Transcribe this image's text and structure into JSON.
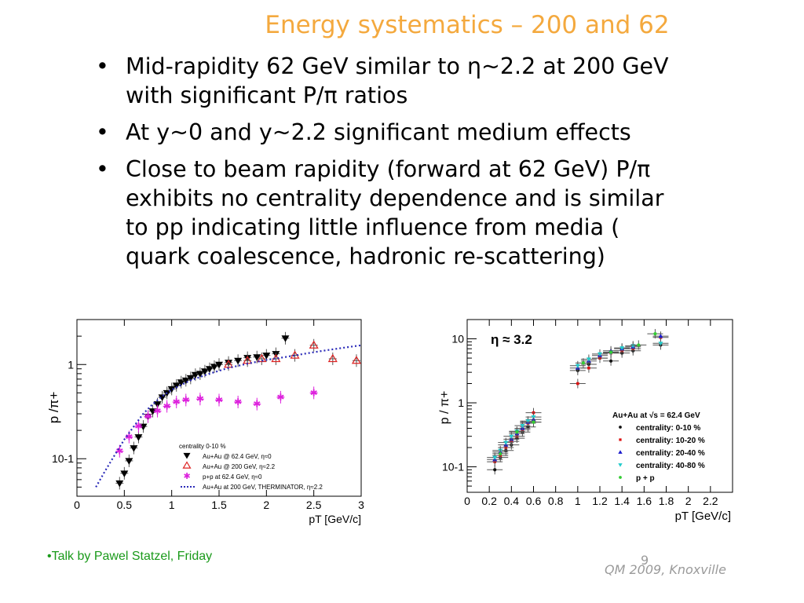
{
  "slide": {
    "title": "Energy systematics – 200 and 62",
    "bullets": [
      {
        "lines": [
          "Mid-rapidity 62 GeV similar to η~2.2 at 200 GeV",
          "with significant P/π ratios"
        ]
      },
      {
        "lines": [
          "At y~0 and y~2.2 significant medium effects"
        ]
      },
      {
        "lines": [
          "Close to beam rapidity (forward at 62 GeV)  P/π",
          "exhibits no centrality dependence and is similar",
          "to pp indicating little influence from media (",
          "quark coalescence, hadronic re-scattering)"
        ]
      }
    ],
    "bullet_symbol": "•",
    "footnote": "•Talk by Pawel Statzel, Friday",
    "conference": "QM 2009, Knoxville",
    "page_number": "9"
  },
  "chart_data": [
    {
      "type": "scatter",
      "xlabel": "pT [GeV/c]",
      "ylabel": "p /π+",
      "xlim": [
        0,
        3
      ],
      "ylim": [
        0.04,
        3
      ],
      "yscale": "log",
      "xticks": [
        "0",
        "0.5",
        "1",
        "1.5",
        "2",
        "2.5",
        "3"
      ],
      "yticks": [
        "10-1",
        "1"
      ],
      "legend_title": "centrality 0-10 %",
      "legend_position": "bottom-right",
      "series": [
        {
          "name": "Au+Au @ 62.4 GeV,  η≈0",
          "marker": "down-triangle",
          "color": "#000000",
          "x": [
            0.45,
            0.5,
            0.55,
            0.6,
            0.65,
            0.7,
            0.75,
            0.8,
            0.85,
            0.9,
            0.95,
            1.0,
            1.05,
            1.1,
            1.15,
            1.2,
            1.25,
            1.3,
            1.35,
            1.4,
            1.45,
            1.5,
            1.6,
            1.7,
            1.8,
            1.9,
            2.0,
            2.1,
            2.2
          ],
          "y": [
            0.055,
            0.07,
            0.095,
            0.13,
            0.17,
            0.22,
            0.28,
            0.32,
            0.38,
            0.45,
            0.5,
            0.55,
            0.6,
            0.65,
            0.68,
            0.72,
            0.78,
            0.8,
            0.85,
            0.9,
            0.95,
            1.0,
            1.05,
            1.1,
            1.18,
            1.2,
            1.25,
            1.3,
            1.9
          ]
        },
        {
          "name": "Au+Au @ 200 GeV,  η≈2.2",
          "marker": "open-up-triangle",
          "color": "#dd2222",
          "x": [
            1.6,
            1.8,
            1.95,
            2.1,
            2.3,
            2.5,
            2.7,
            2.95
          ],
          "y": [
            1.0,
            1.1,
            1.15,
            1.15,
            1.25,
            1.6,
            1.15,
            1.1
          ]
        },
        {
          "name": "p+p at 62.4 GeV,  η≈0",
          "marker": "star",
          "color": "#dd22dd",
          "x": [
            0.45,
            0.55,
            0.65,
            0.75,
            0.85,
            0.95,
            1.05,
            1.15,
            1.3,
            1.5,
            1.7,
            1.9,
            2.15,
            2.5
          ],
          "y": [
            0.12,
            0.17,
            0.22,
            0.28,
            0.32,
            0.36,
            0.4,
            0.42,
            0.43,
            0.42,
            0.4,
            0.38,
            0.45,
            0.5
          ]
        },
        {
          "name": "Au+Au at 200 GeV, THERMINATOR, η≈2.2",
          "marker": "dotted-line",
          "color": "#2a2ab8",
          "x": [
            0.2,
            0.3,
            0.4,
            0.5,
            0.6,
            0.7,
            0.8,
            0.9,
            1.0,
            1.2,
            1.4,
            1.6,
            1.8,
            2.0,
            2.2,
            2.4,
            2.6,
            2.8,
            3.0
          ],
          "y": [
            0.05,
            0.075,
            0.11,
            0.16,
            0.22,
            0.3,
            0.38,
            0.46,
            0.54,
            0.68,
            0.8,
            0.92,
            1.02,
            1.12,
            1.2,
            1.3,
            1.4,
            1.5,
            1.6
          ]
        }
      ]
    },
    {
      "type": "scatter",
      "annotation": "η ≈ 3.2",
      "xlabel": "pT [GeV/c]",
      "ylabel": "p / π+",
      "xlim": [
        0,
        2.4
      ],
      "ylim": [
        0.04,
        20
      ],
      "yscale": "log",
      "xticks": [
        "0",
        "0.2",
        "0.4",
        "0.6",
        "0.8",
        "1",
        "1.2",
        "1.4",
        "1.6",
        "1.8",
        "2",
        "2.2"
      ],
      "yticks": [
        "10-1",
        "1",
        "10"
      ],
      "legend_title": "Au+Au at √s = 62.4 GeV",
      "legend_position": "bottom-right",
      "series": [
        {
          "name": "centrality: 0-10 %",
          "marker": "circle",
          "color": "#111111",
          "x": [
            0.25,
            0.3,
            0.35,
            0.4,
            0.45,
            0.5,
            0.55,
            0.6,
            1.0,
            1.1,
            1.2,
            1.3,
            1.4,
            1.5,
            1.75
          ],
          "y": [
            0.09,
            0.14,
            0.18,
            0.22,
            0.28,
            0.35,
            0.42,
            0.5,
            3.2,
            4.0,
            5.0,
            4.5,
            6.0,
            6.5,
            8.0
          ]
        },
        {
          "name": "centrality: 10-20 %",
          "marker": "square",
          "color": "#dd1111",
          "x": [
            0.25,
            0.3,
            0.35,
            0.4,
            0.45,
            0.5,
            0.55,
            0.6,
            1.0,
            1.1,
            1.2,
            1.3,
            1.4,
            1.5,
            1.75
          ],
          "y": [
            0.12,
            0.15,
            0.2,
            0.25,
            0.3,
            0.38,
            0.48,
            0.7,
            2.0,
            3.5,
            5.0,
            6.0,
            6.5,
            7.0,
            10.5
          ]
        },
        {
          "name": "centrality: 20-40 %",
          "marker": "up-triangle",
          "color": "#1a1acc",
          "x": [
            0.25,
            0.3,
            0.35,
            0.4,
            0.45,
            0.5,
            0.55,
            0.6,
            1.0,
            1.1,
            1.2,
            1.3,
            1.4,
            1.5,
            1.75
          ],
          "y": [
            0.13,
            0.17,
            0.22,
            0.27,
            0.33,
            0.4,
            0.5,
            0.55,
            3.5,
            4.5,
            5.5,
            6.5,
            7.0,
            7.5,
            11.0
          ]
        },
        {
          "name": "centrality: 40-80 %",
          "marker": "down-triangle",
          "color": "#22cccc",
          "x": [
            0.25,
            0.3,
            0.35,
            0.4,
            0.45,
            0.5,
            0.55,
            0.6,
            1.0,
            1.1,
            1.2,
            1.3,
            1.4,
            1.5,
            1.75
          ],
          "y": [
            0.14,
            0.18,
            0.24,
            0.3,
            0.36,
            0.44,
            0.52,
            0.6,
            3.8,
            4.8,
            5.8,
            6.0,
            7.2,
            7.8,
            8.5
          ]
        },
        {
          "name": "p + p",
          "marker": "circle",
          "color": "#33cc33",
          "x": [
            0.3,
            0.45,
            0.6,
            1.05,
            1.3,
            1.55,
            1.7
          ],
          "y": [
            0.16,
            0.35,
            0.5,
            4.2,
            6.2,
            8.0,
            12.0
          ]
        }
      ]
    }
  ]
}
